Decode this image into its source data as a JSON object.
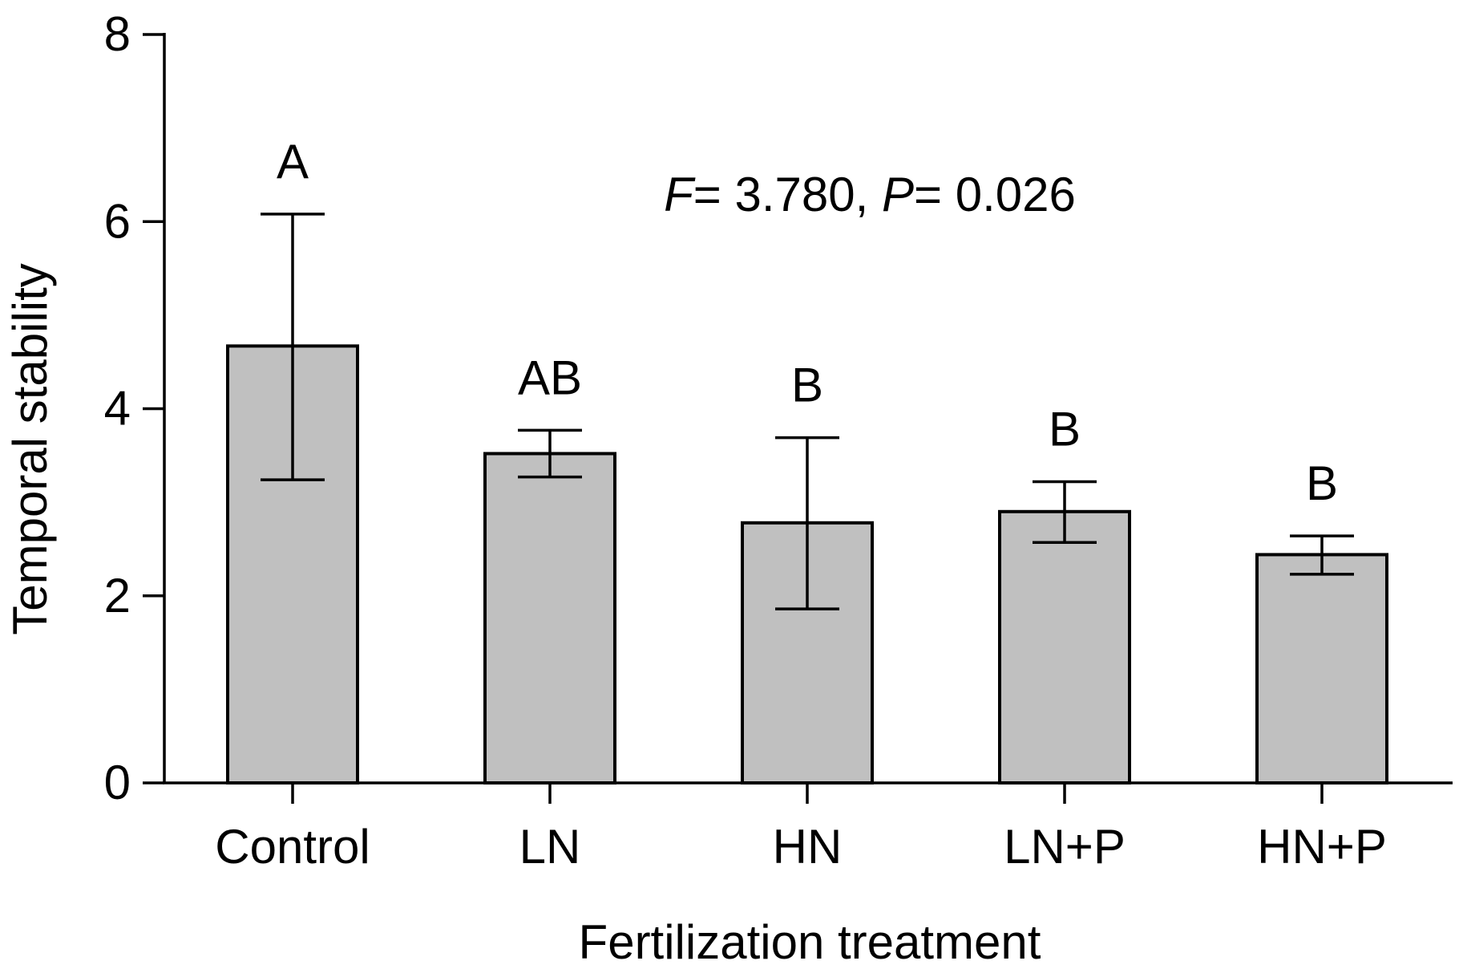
{
  "chart_data": {
    "type": "bar",
    "title": "",
    "xlabel": "Fertilization treatment",
    "ylabel": "Temporal stability",
    "ylim": [
      0,
      8
    ],
    "yticks": [
      0,
      2,
      4,
      6,
      8
    ],
    "grid": false,
    "categories": [
      "Control",
      "LN",
      "HN",
      "LN+P",
      "HN+P"
    ],
    "series": [
      {
        "name": "Temporal stability",
        "values": [
          4.67,
          3.52,
          2.78,
          2.9,
          2.44
        ],
        "error_low": [
          3.24,
          3.27,
          1.86,
          2.57,
          2.23
        ],
        "error_high": [
          6.08,
          3.77,
          3.69,
          3.22,
          2.64
        ],
        "bar_color": "#c0c0c0",
        "edge_color": "#000000"
      }
    ],
    "significance_letters": [
      "A",
      "AB",
      "B",
      "B",
      "B"
    ],
    "annotation": {
      "f_symbol": "F",
      "f_value": "= 3.780,",
      "p_symbol": "P",
      "p_value": "= 0.026"
    }
  }
}
